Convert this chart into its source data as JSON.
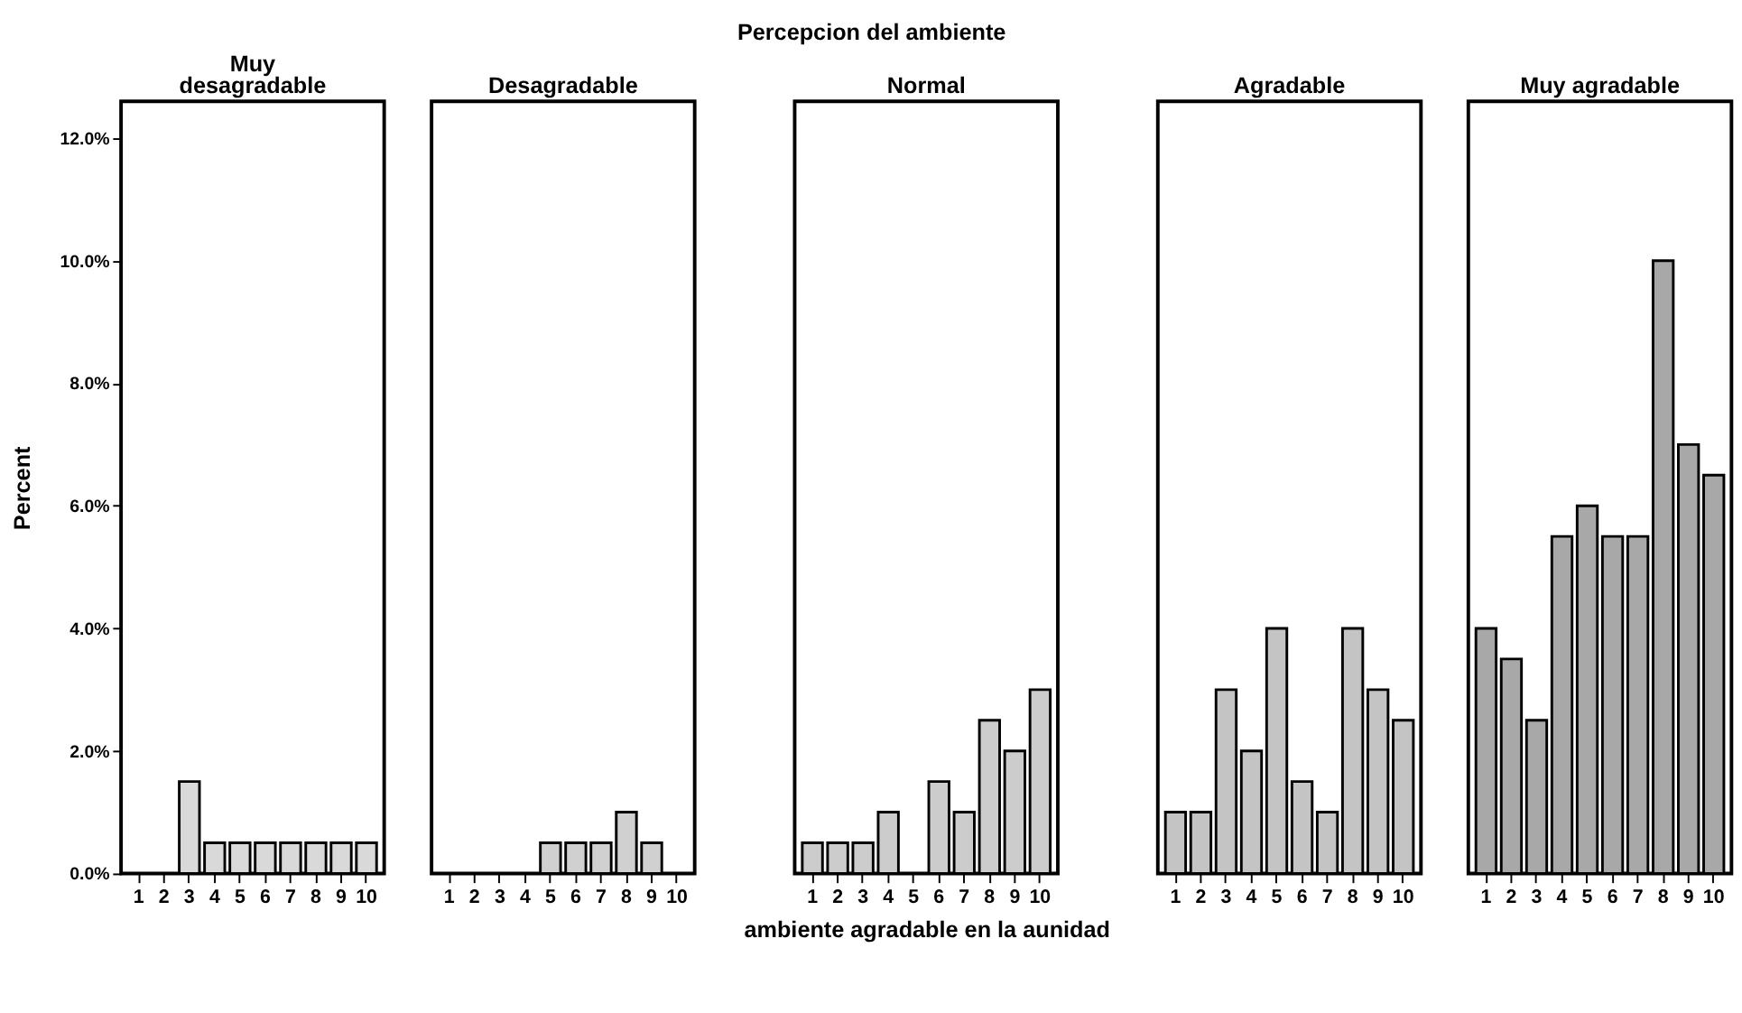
{
  "chart_data": [
    {
      "type": "bar",
      "title": "Muy desagradable",
      "ylabel": "Percent",
      "annotations": [
        "Percepcion del ambiente"
      ],
      "categories": [
        "1",
        "2",
        "3",
        "4",
        "5",
        "6",
        "7",
        "8",
        "9",
        "10"
      ],
      "values": [
        0,
        0,
        1.5,
        0.5,
        0.5,
        0.5,
        0.5,
        0.5,
        0.5,
        0.5
      ],
      "color": "#d9d9d9",
      "ylim": [
        0,
        12.6
      ],
      "yticks": [
        {
          "value": 0,
          "label": "0.0%"
        },
        {
          "value": 2,
          "label": "2.0%"
        },
        {
          "value": 4,
          "label": "4.0%"
        },
        {
          "value": 6,
          "label": "6.0%"
        },
        {
          "value": 8,
          "label": "8.0%"
        },
        {
          "value": 10,
          "label": "10.0%"
        },
        {
          "value": 12,
          "label": "12.0%"
        }
      ],
      "grid": false
    },
    {
      "type": "bar",
      "title": "Desagradable",
      "categories": [
        "1",
        "2",
        "3",
        "4",
        "5",
        "6",
        "7",
        "8",
        "9",
        "10"
      ],
      "values": [
        0,
        0,
        0,
        0,
        0.5,
        0.5,
        0.5,
        1.0,
        0.5,
        0
      ],
      "color": "#d0d0d0",
      "ylim": [
        0,
        12.6
      ],
      "tick_labels": "x",
      "grid": false
    },
    {
      "type": "bar",
      "title": "Normal",
      "xlabel": "ambiente agradable en la aunidad",
      "categories": [
        "1",
        "2",
        "3",
        "4",
        "5",
        "6",
        "7",
        "8",
        "9",
        "10"
      ],
      "values": [
        0.5,
        0.5,
        0.5,
        1.0,
        0,
        1.5,
        1.0,
        2.5,
        2.0,
        3.0
      ],
      "color": "#cccccc",
      "ylim": [
        0,
        12.6
      ],
      "tick_labels": "x",
      "grid": false
    },
    {
      "type": "bar",
      "title": "Agradable",
      "categories": [
        "1",
        "2",
        "3",
        "4",
        "5",
        "6",
        "7",
        "8",
        "9",
        "10"
      ],
      "values": [
        1.0,
        1.0,
        3.0,
        2.0,
        4.0,
        1.5,
        1.0,
        4.0,
        3.0,
        2.5
      ],
      "color": "#c4c4c4",
      "ylim": [
        0,
        12.6
      ],
      "tick_labels": "x",
      "grid": false
    },
    {
      "type": "bar",
      "title": "Muy agradable",
      "categories": [
        "1",
        "2",
        "3",
        "4",
        "5",
        "6",
        "7",
        "8",
        "9",
        "10"
      ],
      "values": [
        4.0,
        3.5,
        2.5,
        5.5,
        6.0,
        5.5,
        5.5,
        10.0,
        7.0,
        6.5
      ],
      "color": "#a8a8a8",
      "ylim": [
        0,
        12.6
      ],
      "tick_labels": "x",
      "grid": false
    }
  ]
}
